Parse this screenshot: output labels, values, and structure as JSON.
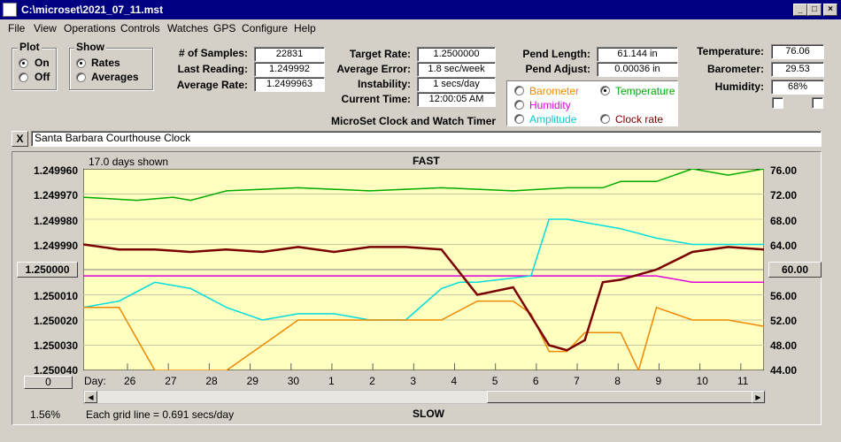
{
  "window": {
    "title": "C:\\microset\\2021_07_11.mst"
  },
  "menu": [
    "File",
    "View",
    "Operations",
    "Controls",
    "Watches",
    "GPS",
    "Configure",
    "Help"
  ],
  "plot_group": {
    "title": "Plot",
    "on": "On",
    "off": "Off"
  },
  "show_group": {
    "title": "Show",
    "rates": "Rates",
    "averages": "Averages"
  },
  "stats": {
    "samples_label": "# of Samples:",
    "samples": "22831",
    "last_label": "Last Reading:",
    "last": "1.249992",
    "avg_label": "Average Rate:",
    "avg": "1.2499963"
  },
  "rates": {
    "target_label": "Target Rate:",
    "target": "1.2500000",
    "error_label": "Average Error:",
    "error": "1.8 sec/week",
    "instab_label": "Instability:",
    "instab": "1 secs/day",
    "time_label": "Current Time:",
    "time": "12:00:05 AM"
  },
  "app_name": "MicroSet Clock and Watch Timer",
  "pend": {
    "length_label": "Pend Length:",
    "length": "61.144 in",
    "adjust_label": "Pend Adjust:",
    "adjust": "0.00036 in"
  },
  "env": {
    "temp_label": "Temperature:",
    "temp": "76.06",
    "baro_label": "Barometer:",
    "baro": "29.53",
    "hum_label": "Humidity:",
    "hum": "68%"
  },
  "secondary": {
    "barometer": "Barometer",
    "temperature": "Temperature",
    "humidity": "Humidity",
    "amplitude": "Amplitude",
    "clock_rate": "Clock rate"
  },
  "colors": {
    "barometer": "#ee8800",
    "temperature": "#00aa00",
    "humidity": "#dd00dd",
    "amplitude": "#00dddd",
    "clock_rate": "#7a0000"
  },
  "close_btn": "X",
  "clock_name": "Santa Barbara Courthouse Clock",
  "plot": {
    "days_shown": "17.0 days shown",
    "fast": "FAST",
    "slow": "SLOW",
    "grid_note": "Each grid line = 0.691 secs/day",
    "zoom": "1.56%",
    "left_btn": "1.250000",
    "right_btn": "60.00",
    "zero_btn": "0",
    "day_label": "Day:"
  },
  "chart_data": {
    "type": "line",
    "y_left_ticks": [
      "1.249960",
      "1.249970",
      "1.249980",
      "1.249990",
      "1.250000",
      "1.250010",
      "1.250020",
      "1.250030",
      "1.250040"
    ],
    "y_right_ticks": [
      "76.00",
      "72.00",
      "68.00",
      "64.00",
      "60.00",
      "56.00",
      "52.00",
      "48.00",
      "44.00"
    ],
    "ylim_left": [
      1.24996,
      1.25004
    ],
    "ylim_right": [
      44,
      76
    ],
    "x_days": [
      "26",
      "27",
      "28",
      "29",
      "30",
      "1",
      "2",
      "3",
      "4",
      "5",
      "6",
      "7",
      "8",
      "9",
      "10",
      "11"
    ],
    "series": [
      {
        "name": "Temperature",
        "axis": "right",
        "values": [
          [
            0,
            71.5
          ],
          [
            1.5,
            71
          ],
          [
            2.5,
            71.5
          ],
          [
            3,
            71
          ],
          [
            4,
            72.5
          ],
          [
            6,
            73
          ],
          [
            8,
            72.5
          ],
          [
            10,
            73
          ],
          [
            12,
            72.5
          ],
          [
            13.5,
            73
          ],
          [
            14.5,
            73
          ],
          [
            15,
            74
          ],
          [
            16,
            74
          ],
          [
            17,
            76
          ],
          [
            18,
            75
          ],
          [
            19,
            76
          ]
        ]
      },
      {
        "name": "Humidity",
        "axis": "right",
        "values": [
          [
            0,
            59
          ],
          [
            3,
            59
          ],
          [
            6,
            59
          ],
          [
            9,
            59
          ],
          [
            12,
            59
          ],
          [
            14,
            59
          ],
          [
            16,
            59
          ],
          [
            17,
            58
          ],
          [
            18,
            58
          ],
          [
            19,
            58
          ]
        ]
      },
      {
        "name": "Amplitude",
        "axis": "right",
        "values": [
          [
            0,
            54
          ],
          [
            1,
            55
          ],
          [
            2,
            58
          ],
          [
            3,
            57
          ],
          [
            4,
            54
          ],
          [
            5,
            52
          ],
          [
            6,
            53
          ],
          [
            7,
            53
          ],
          [
            8,
            52
          ],
          [
            9,
            52
          ],
          [
            10,
            57
          ],
          [
            10.5,
            58
          ],
          [
            11,
            58
          ],
          [
            12.5,
            59
          ],
          [
            13,
            68
          ],
          [
            13.5,
            68
          ],
          [
            14,
            67.5
          ],
          [
            15,
            66.5
          ],
          [
            16,
            65
          ],
          [
            17,
            64
          ],
          [
            18,
            64
          ],
          [
            19,
            64
          ]
        ]
      },
      {
        "name": "Barometer",
        "axis": "right",
        "values": [
          [
            0,
            54
          ],
          [
            1,
            54
          ],
          [
            2,
            44
          ],
          [
            3,
            44
          ],
          [
            4,
            44
          ],
          [
            5,
            48
          ],
          [
            6,
            52
          ],
          [
            7,
            52
          ],
          [
            8,
            52
          ],
          [
            9,
            52
          ],
          [
            10,
            52
          ],
          [
            11,
            55
          ],
          [
            12,
            55
          ],
          [
            12.5,
            53
          ],
          [
            13,
            47
          ],
          [
            13.5,
            47
          ],
          [
            14,
            50
          ],
          [
            15,
            50
          ],
          [
            15.5,
            44
          ],
          [
            16,
            54
          ],
          [
            17,
            52
          ],
          [
            18,
            52
          ],
          [
            19,
            51
          ]
        ]
      },
      {
        "name": "Clock rate",
        "axis": "left",
        "values": [
          [
            0,
            1.24999
          ],
          [
            1,
            1.249992
          ],
          [
            2,
            1.249992
          ],
          [
            3,
            1.249993
          ],
          [
            4,
            1.249992
          ],
          [
            5,
            1.249993
          ],
          [
            6,
            1.249991
          ],
          [
            7,
            1.249993
          ],
          [
            8,
            1.249991
          ],
          [
            9,
            1.249991
          ],
          [
            10,
            1.249992
          ],
          [
            11,
            1.25001
          ],
          [
            12,
            1.250007
          ],
          [
            13,
            1.25003
          ],
          [
            13.5,
            1.250032
          ],
          [
            14,
            1.250028
          ],
          [
            14.5,
            1.250005
          ],
          [
            15,
            1.250004
          ],
          [
            16,
            1.25
          ],
          [
            17,
            1.249993
          ],
          [
            18,
            1.249991
          ],
          [
            19,
            1.249992
          ]
        ]
      }
    ]
  }
}
